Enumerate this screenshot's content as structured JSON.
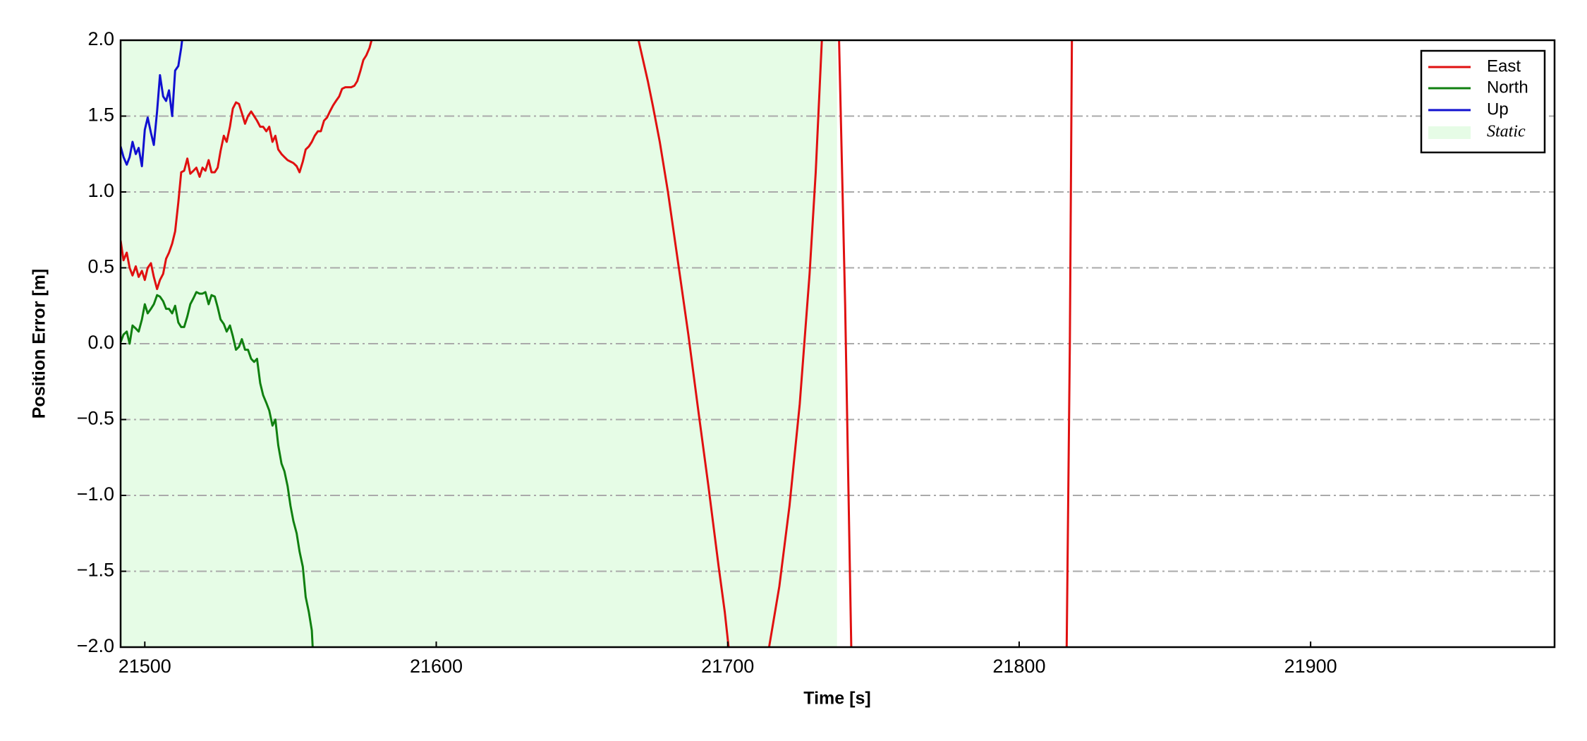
{
  "chart_data": {
    "type": "line",
    "xlabel": "Time [s]",
    "ylabel": "Position Error [m]",
    "xlim": [
      21491.7,
      21983.7
    ],
    "ylim": [
      -2.0,
      2.0
    ],
    "xticks": [
      21500,
      21600,
      21700,
      21800,
      21900
    ],
    "yticks": [
      {
        "value": -2.0,
        "label": "−2.0"
      },
      {
        "value": -1.5,
        "label": "−1.5"
      },
      {
        "value": -1.0,
        "label": "−1.0"
      },
      {
        "value": -0.5,
        "label": "−0.5"
      },
      {
        "value": 0.0,
        "label": "0.0"
      },
      {
        "value": 0.5,
        "label": "0.5"
      },
      {
        "value": 1.0,
        "label": "1.0"
      },
      {
        "value": 1.5,
        "label": "1.5"
      },
      {
        "value": 2.0,
        "label": "2.0"
      }
    ],
    "grid": true,
    "legend": "upper right",
    "shaded_regions": [
      {
        "name": "Static",
        "color": "#e6fce6",
        "x": [
          21491.7,
          21737.5
        ]
      }
    ],
    "series": [
      {
        "name": "East",
        "color": "#e01010",
        "x": [
          21491.7,
          21492.7,
          21493.8,
          21494.8,
          21495.8,
          21496.9,
          21497.9,
          21499.0,
          21500.0,
          21501.0,
          21502.1,
          21503.1,
          21504.2,
          21505.2,
          21506.3,
          21507.3,
          21508.3,
          21509.4,
          21510.4,
          21511.5,
          21512.5,
          21513.5,
          21514.6,
          21515.6,
          21516.7,
          21517.7,
          21518.8,
          21519.8,
          21520.8,
          21521.9,
          21522.9,
          21524.0,
          21525.0,
          21526.0,
          21527.1,
          21528.1,
          21529.2,
          21530.2,
          21531.3,
          21532.3,
          21533.3,
          21534.4,
          21535.4,
          21536.5,
          21537.5,
          21538.5,
          21539.6,
          21540.6,
          21541.7,
          21542.7,
          21543.8,
          21544.8,
          21545.8,
          21546.9,
          21547.9,
          21549.0,
          21550.0,
          21551.0,
          21552.1,
          21553.1,
          21554.2,
          21555.2,
          21556.3,
          21557.3,
          21558.3,
          21559.4,
          21560.4,
          21561.5,
          21562.5,
          21563.5,
          21564.6,
          21565.6,
          21566.7,
          21567.7,
          21568.8,
          21569.8,
          21570.8,
          21571.9,
          21572.9,
          21574.0,
          21575.0,
          21576.0,
          21577.1,
          21577.8,
          21620.0,
          21669.4,
          21672.6,
          21674.3,
          21676.7,
          21679.5,
          21683.0,
          21686.5,
          21689.9,
          21693.4,
          21696.9,
          21699.0,
          21700.3,
          21707.0,
          21714.2,
          21717.7,
          21721.2,
          21724.7,
          21728.1,
          21730.2,
          21732.3,
          21735.0,
          21738.2,
          21740.3,
          21742.4,
          21780.0,
          21816.3,
          21817.4,
          21818.1
        ],
        "values": [
          0.68,
          0.55,
          0.6,
          0.5,
          0.45,
          0.51,
          0.44,
          0.48,
          0.42,
          0.5,
          0.53,
          0.44,
          0.36,
          0.42,
          0.46,
          0.56,
          0.6,
          0.66,
          0.74,
          0.93,
          1.13,
          1.14,
          1.22,
          1.12,
          1.14,
          1.16,
          1.1,
          1.16,
          1.14,
          1.21,
          1.13,
          1.13,
          1.16,
          1.27,
          1.37,
          1.33,
          1.43,
          1.55,
          1.59,
          1.58,
          1.52,
          1.45,
          1.5,
          1.53,
          1.5,
          1.47,
          1.43,
          1.43,
          1.4,
          1.43,
          1.33,
          1.37,
          1.28,
          1.25,
          1.23,
          1.21,
          1.2,
          1.19,
          1.17,
          1.13,
          1.2,
          1.28,
          1.3,
          1.33,
          1.37,
          1.4,
          1.4,
          1.47,
          1.49,
          1.53,
          1.57,
          1.6,
          1.63,
          1.68,
          1.69,
          1.69,
          1.69,
          1.7,
          1.73,
          1.8,
          1.87,
          1.9,
          1.95,
          2.0,
          null,
          2.0,
          1.73,
          1.57,
          1.33,
          1.0,
          0.53,
          0.06,
          -0.44,
          -0.94,
          -1.47,
          -1.77,
          -2.0,
          null,
          -2.0,
          -1.6,
          -1.07,
          -0.4,
          0.46,
          1.13,
          2.0,
          null,
          2.0,
          0.26,
          -2.0,
          null,
          -2.0,
          0.0,
          2.0
        ]
      },
      {
        "name": "North",
        "color": "#108010",
        "x": [
          21491.7,
          21492.7,
          21493.8,
          21494.8,
          21495.8,
          21496.9,
          21497.9,
          21499.0,
          21500.0,
          21501.0,
          21502.1,
          21503.1,
          21504.2,
          21505.2,
          21506.3,
          21507.3,
          21508.3,
          21509.4,
          21510.4,
          21511.5,
          21512.5,
          21513.5,
          21514.6,
          21515.6,
          21516.7,
          21517.7,
          21518.8,
          21519.8,
          21520.8,
          21521.9,
          21522.9,
          21524.0,
          21525.0,
          21526.0,
          21527.1,
          21528.1,
          21529.2,
          21530.2,
          21531.3,
          21532.3,
          21533.3,
          21534.4,
          21535.4,
          21536.5,
          21537.5,
          21538.5,
          21539.6,
          21540.6,
          21541.7,
          21542.7,
          21543.8,
          21544.8,
          21545.8,
          21546.9,
          21547.9,
          21549.0,
          21550.0,
          21551.0,
          21552.1,
          21553.1,
          21554.2,
          21555.2,
          21556.3,
          21557.3,
          21557.6
        ],
        "values": [
          0.01,
          0.06,
          0.08,
          0.0,
          0.12,
          0.1,
          0.08,
          0.16,
          0.26,
          0.2,
          0.23,
          0.26,
          0.32,
          0.31,
          0.28,
          0.23,
          0.23,
          0.2,
          0.25,
          0.14,
          0.11,
          0.11,
          0.18,
          0.26,
          0.3,
          0.34,
          0.33,
          0.33,
          0.34,
          0.26,
          0.32,
          0.31,
          0.24,
          0.16,
          0.13,
          0.08,
          0.12,
          0.05,
          -0.04,
          -0.02,
          0.03,
          -0.04,
          -0.04,
          -0.1,
          -0.12,
          -0.1,
          -0.26,
          -0.34,
          -0.39,
          -0.44,
          -0.54,
          -0.5,
          -0.67,
          -0.79,
          -0.84,
          -0.94,
          -1.07,
          -1.17,
          -1.25,
          -1.37,
          -1.47,
          -1.67,
          -1.77,
          -1.89,
          -2.0
        ]
      },
      {
        "name": "Up",
        "color": "#1010d0",
        "x": [
          21491.7,
          21492.7,
          21493.8,
          21494.8,
          21495.8,
          21496.9,
          21497.9,
          21499.0,
          21500.0,
          21501.0,
          21502.1,
          21503.1,
          21504.2,
          21505.2,
          21506.3,
          21507.3,
          21508.3,
          21509.4,
          21510.4,
          21511.5,
          21512.5,
          21512.8
        ],
        "values": [
          1.3,
          1.23,
          1.18,
          1.23,
          1.33,
          1.25,
          1.29,
          1.17,
          1.41,
          1.49,
          1.39,
          1.31,
          1.53,
          1.77,
          1.63,
          1.6,
          1.67,
          1.5,
          1.8,
          1.83,
          1.95,
          2.0
        ]
      }
    ]
  }
}
